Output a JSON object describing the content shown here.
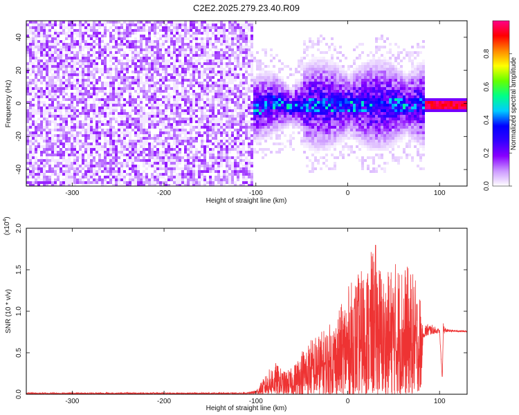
{
  "title": "C2E2.2025.279.23.40.R09",
  "chart_data": [
    {
      "type": "heatmap",
      "xlabel": "Height of straight line (km)",
      "ylabel": "Frequency (Hz)",
      "xlim": [
        -350,
        130
      ],
      "ylim": [
        -50,
        50
      ],
      "xticks": [
        -300,
        -200,
        -100,
        0,
        100
      ],
      "xtick_labels": [
        "-300",
        "-200",
        "-100",
        "0",
        "100"
      ],
      "yticks": [
        -40,
        -20,
        0,
        20,
        40
      ],
      "ytick_labels": [
        "-40",
        "-20",
        "0",
        "20",
        "40"
      ],
      "colorbar": {
        "label": "Normalized spectral amplitude",
        "range": [
          0,
          1
        ],
        "ticks": [
          0.0,
          0.2,
          0.4,
          0.6,
          0.8
        ],
        "tick_labels": [
          "0.0",
          "0.2",
          "0.4",
          "0.6",
          "0.8"
        ],
        "colors": [
          "#ffffff",
          "#cc99ff",
          "#8800ff",
          "#3300ff",
          "#0000ff",
          "#00ccff",
          "#00ff88",
          "#66ff00",
          "#ffff00",
          "#ff8800",
          "#ff0000",
          "#ff0088"
        ]
      },
      "regions": [
        {
          "x": [
            -350,
            -105
          ],
          "description_level": 0.08
        },
        {
          "x": [
            -105,
            82
          ],
          "description_level": 0.25
        },
        {
          "x": [
            82,
            130
          ],
          "description_level": 0.95
        }
      ]
    },
    {
      "type": "line",
      "xlabel": "Height of straight line (km)",
      "ylabel": "SNR (10 * v/v)",
      "yscale_label": "(x10",
      "yscale_exp": "4",
      "yscale_close": ")",
      "xlim": [
        -350,
        130
      ],
      "ylim": [
        0,
        2.0
      ],
      "xticks": [
        -300,
        -200,
        -100,
        0,
        100
      ],
      "xtick_labels": [
        "-300",
        "-200",
        "-100",
        "0",
        "100"
      ],
      "yticks": [
        0.0,
        0.5,
        1.0,
        1.5,
        2.0
      ],
      "ytick_labels": [
        "0.0",
        "0.5",
        "1.0",
        "1.5",
        "2.0"
      ],
      "color": "#ee3333",
      "envelope": {
        "x": [
          -350,
          -110,
          -100,
          -90,
          -80,
          -70,
          -60,
          -50,
          -40,
          -30,
          -20,
          -10,
          0,
          10,
          20,
          30,
          40,
          50,
          60,
          70,
          80,
          82,
          83,
          90,
          100,
          103,
          104,
          106,
          110,
          120,
          130
        ],
        "max": [
          0.02,
          0.02,
          0.05,
          0.22,
          0.4,
          0.28,
          0.32,
          0.55,
          0.68,
          0.75,
          0.85,
          1.0,
          1.3,
          1.45,
          1.55,
          1.85,
          1.4,
          1.62,
          1.6,
          1.5,
          1.2,
          0.7,
          0.85,
          0.85,
          0.78,
          0.2,
          0.88,
          0.8,
          0.78,
          0.77,
          0.77
        ],
        "min": [
          0.0,
          0.0,
          0.0,
          0.0,
          0.0,
          0.0,
          0.0,
          0.0,
          0.0,
          0.0,
          0.0,
          0.0,
          0.0,
          0.0,
          0.0,
          0.0,
          0.0,
          0.0,
          0.0,
          0.0,
          0.05,
          0.7,
          0.68,
          0.72,
          0.74,
          0.15,
          0.72,
          0.74,
          0.75,
          0.75,
          0.75
        ]
      }
    }
  ]
}
